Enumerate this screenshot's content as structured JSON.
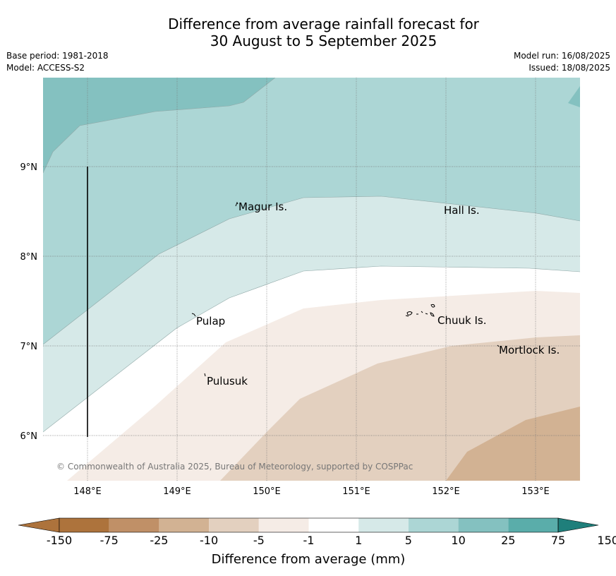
{
  "title_line1": "Difference from average rainfall forecast for",
  "title_line2": "30 August to 5 September 2025",
  "meta": {
    "base_period": "Base period: 1981-2018",
    "model": "Model: ACCESS-S2",
    "model_run": "Model run: 16/08/2025",
    "issued": "Issued: 18/08/2025"
  },
  "map": {
    "lon_labels": [
      "148°E",
      "149°E",
      "150°E",
      "151°E",
      "152°E",
      "153°E"
    ],
    "lat_labels": [
      "9°N",
      "8°N",
      "7°N",
      "6°N"
    ],
    "places": [
      "Magur Is.",
      "Hall Is.",
      "Pulap",
      "Chuuk Is.",
      "Mortlock Is.",
      "Pulusuk"
    ],
    "copyright": "© Commonwealth of Australia 2025, Bureau of Meteorology, supported by COSPPac"
  },
  "legend": {
    "title": "Difference from average (mm)",
    "ticks": [
      "-150",
      "-75",
      "-25",
      "-10",
      "-5",
      "-1",
      "1",
      "5",
      "10",
      "25",
      "75",
      "150"
    ],
    "colors": [
      "#ad733c",
      "#c09067",
      "#d2b293",
      "#e3d0bf",
      "#f5ece6",
      "#ffffff",
      "#d6e9e8",
      "#acd6d5",
      "#84c1c0",
      "#5aadaa",
      "#349a96",
      "#1f7f7b"
    ]
  }
}
